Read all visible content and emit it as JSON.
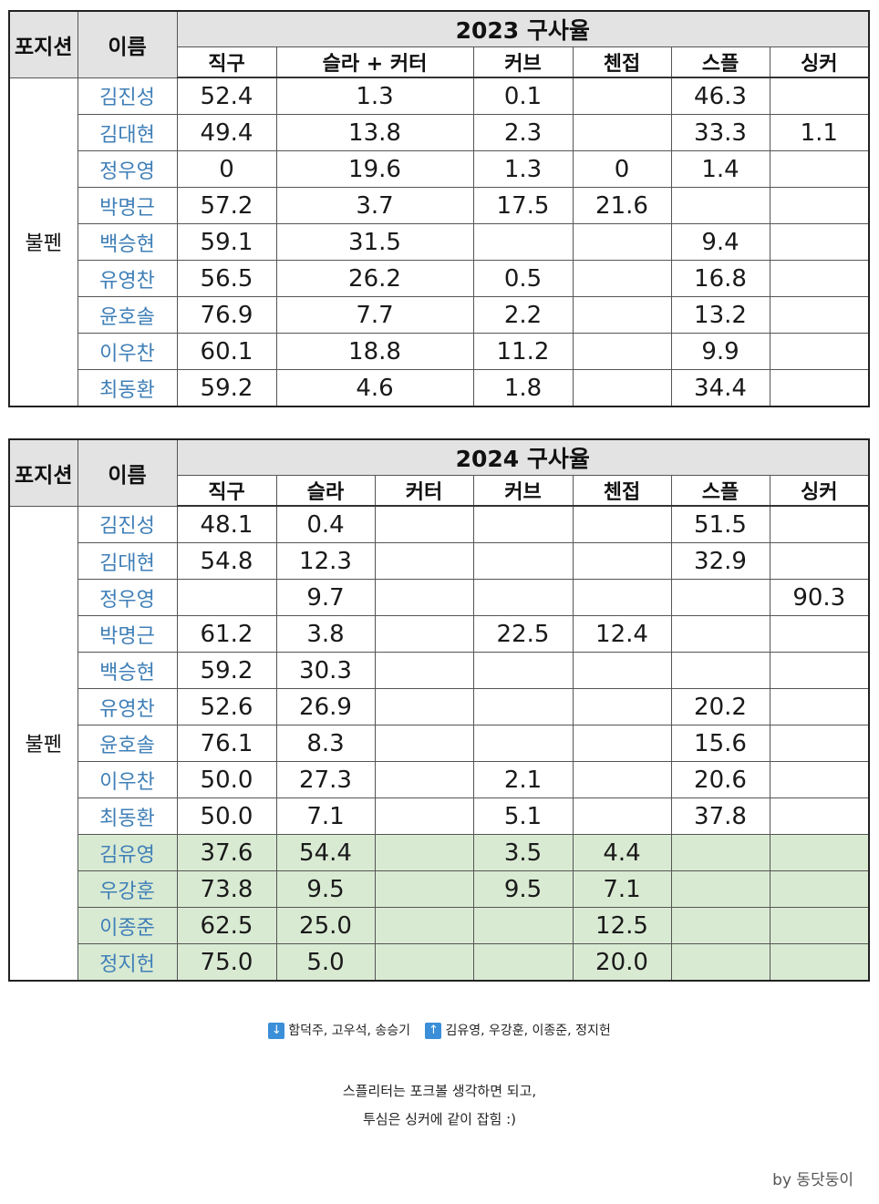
{
  "t2023": {
    "h_position": "포지션",
    "h_name": "이름",
    "season_title": "2023 구사율",
    "pitch_headers": [
      "직구",
      "슬라 + 커터",
      "커브",
      "첸접",
      "스플",
      "싱커"
    ],
    "position_label": "불펜",
    "rows": [
      {
        "name": "김진성",
        "v": [
          "52.4",
          "1.3",
          "0.1",
          "",
          "46.3",
          ""
        ]
      },
      {
        "name": "김대현",
        "v": [
          "49.4",
          "13.8",
          "2.3",
          "",
          "33.3",
          "1.1"
        ]
      },
      {
        "name": "정우영",
        "v": [
          "0",
          "19.6",
          "1.3",
          "0",
          "1.4",
          ""
        ]
      },
      {
        "name": "박명근",
        "v": [
          "57.2",
          "3.7",
          "17.5",
          "21.6",
          "",
          ""
        ]
      },
      {
        "name": "백승현",
        "v": [
          "59.1",
          "31.5",
          "",
          "",
          "9.4",
          ""
        ]
      },
      {
        "name": "유영찬",
        "v": [
          "56.5",
          "26.2",
          "0.5",
          "",
          "16.8",
          ""
        ]
      },
      {
        "name": "윤호솔",
        "v": [
          "76.9",
          "7.7",
          "2.2",
          "",
          "13.2",
          ""
        ]
      },
      {
        "name": "이우찬",
        "v": [
          "60.1",
          "18.8",
          "11.2",
          "",
          "9.9",
          ""
        ]
      },
      {
        "name": "최동환",
        "v": [
          "59.2",
          "4.6",
          "1.8",
          "",
          "34.4",
          ""
        ]
      }
    ]
  },
  "t2024": {
    "h_position": "포지션",
    "h_name": "이름",
    "season_title": "2024 구사율",
    "pitch_headers": [
      "직구",
      "슬라",
      "커터",
      "커브",
      "첸접",
      "스플",
      "싱커"
    ],
    "position_label": "불펜",
    "rows": [
      {
        "name": "김진성",
        "v": [
          "48.1",
          "0.4",
          "",
          "",
          "",
          "51.5",
          ""
        ]
      },
      {
        "name": "김대현",
        "v": [
          "54.8",
          "12.3",
          "",
          "",
          "",
          "32.9",
          ""
        ]
      },
      {
        "name": "정우영",
        "v": [
          "",
          "9.7",
          "",
          "",
          "",
          "",
          "90.3"
        ]
      },
      {
        "name": "박명근",
        "v": [
          "61.2",
          "3.8",
          "",
          "22.5",
          "12.4",
          "",
          ""
        ]
      },
      {
        "name": "백승현",
        "v": [
          "59.2",
          "30.3",
          "",
          "",
          "",
          "",
          ""
        ]
      },
      {
        "name": "유영찬",
        "v": [
          "52.6",
          "26.9",
          "",
          "",
          "",
          "20.2",
          ""
        ]
      },
      {
        "name": "윤호솔",
        "v": [
          "76.1",
          "8.3",
          "",
          "",
          "",
          "15.6",
          ""
        ]
      },
      {
        "name": "이우찬",
        "v": [
          "50.0",
          "27.3",
          "",
          "2.1",
          "",
          "20.6",
          ""
        ]
      },
      {
        "name": "최동환",
        "v": [
          "50.0",
          "7.1",
          "",
          "5.1",
          "",
          "37.8",
          ""
        ]
      },
      {
        "name": "김유영",
        "v": [
          "37.6",
          "54.4",
          "",
          "3.5",
          "4.4",
          "",
          ""
        ]
      },
      {
        "name": "우강훈",
        "v": [
          "73.8",
          "9.5",
          "",
          "9.5",
          "7.1",
          "",
          ""
        ]
      },
      {
        "name": "이종준",
        "v": [
          "62.5",
          "25.0",
          "",
          "",
          "12.5",
          "",
          ""
        ]
      },
      {
        "name": "정지헌",
        "v": [
          "75.0",
          "5.0",
          "",
          "",
          "20.0",
          "",
          ""
        ]
      }
    ]
  },
  "legend": {
    "down_icon": "arrow-down-icon",
    "down_names": "함덕주, 고우석, 송승기",
    "up_icon": "arrow-up-icon",
    "up_names": "김유영, 우강훈, 이종준, 정지헌",
    "color_new": "#d9ead3",
    "color_icon": "#3a8fd8"
  },
  "notes": {
    "line1": "스플리터는 포크볼 생각하면 되고,",
    "line2": "투심은 싱커에 같이 잡힘 :)"
  },
  "credit": "by 동닷둥이"
}
